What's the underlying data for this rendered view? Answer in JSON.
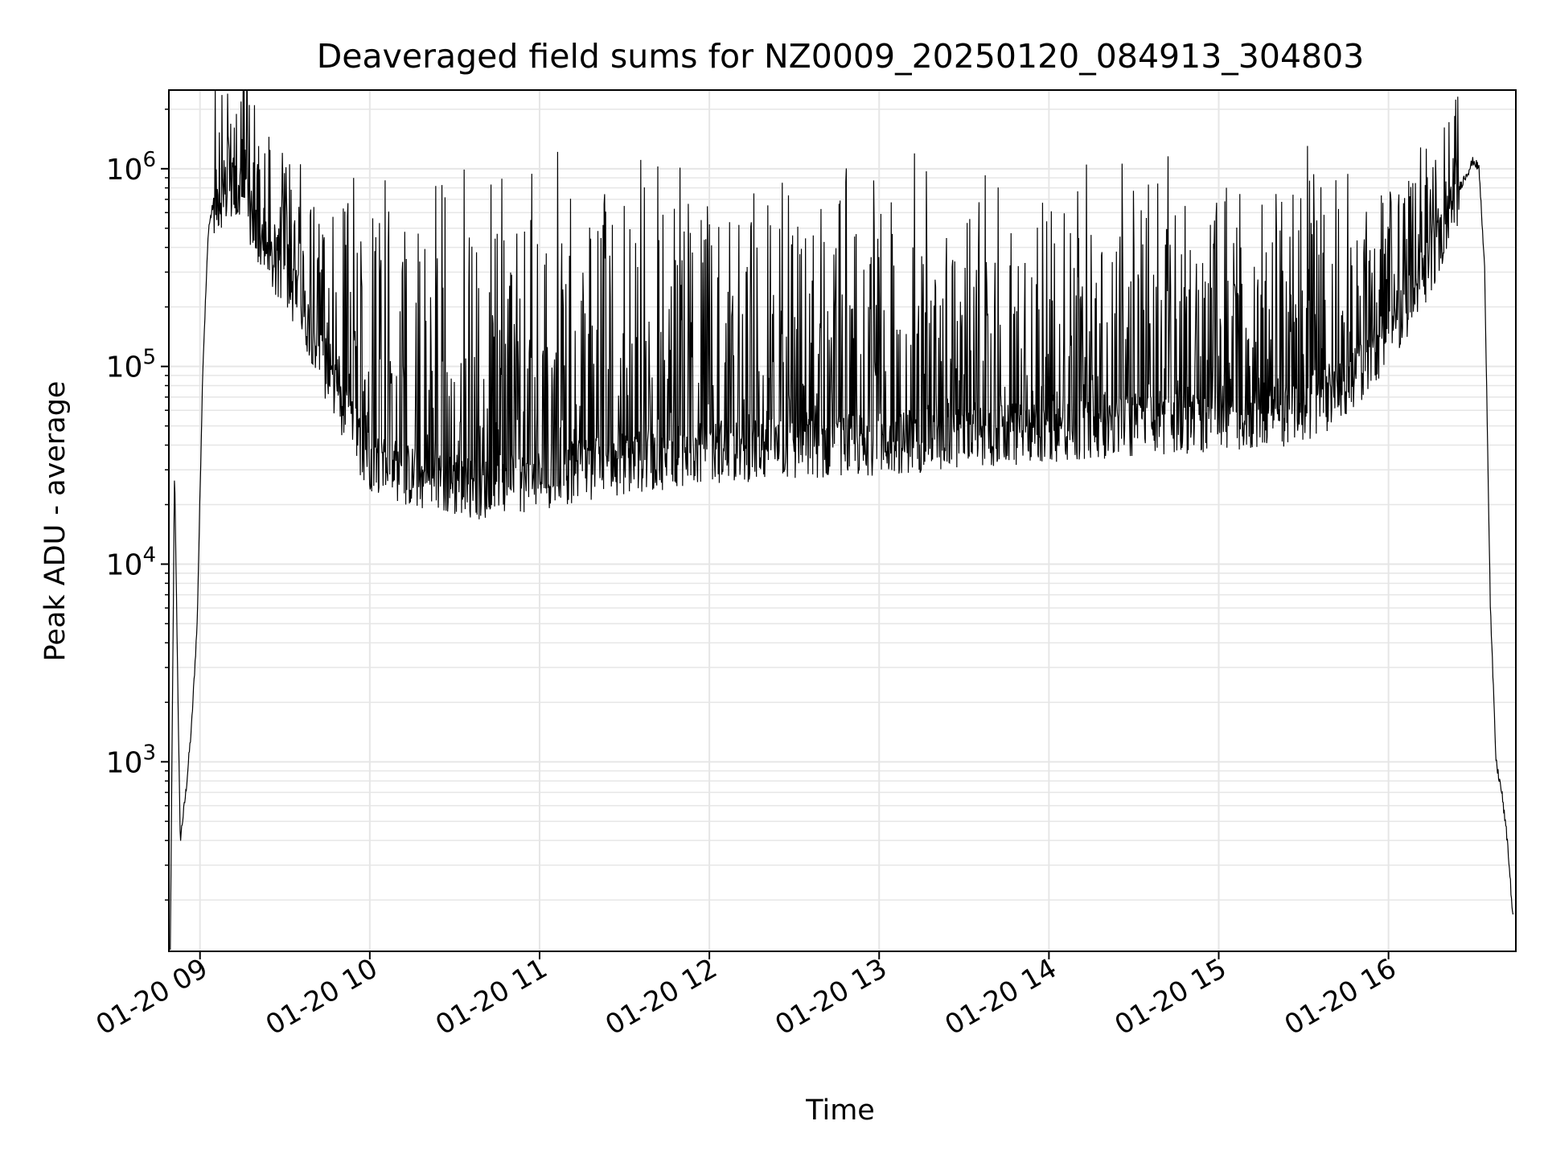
{
  "chart_data": {
    "type": "line",
    "title": "Deaveraged field sums for NZ0009_20250120_084913_304803",
    "xlabel": "Time",
    "ylabel": "Peak ADU - average",
    "x_range": [
      "2025-01-20T08:49:00",
      "2025-01-20T16:45:00"
    ],
    "ylim": [
      110,
      2500000
    ],
    "y_scale": "log",
    "grid": true,
    "x_ticks": [
      {
        "t": "2025-01-20T09:00",
        "label": "01-20 09"
      },
      {
        "t": "2025-01-20T10:00",
        "label": "01-20 10"
      },
      {
        "t": "2025-01-20T11:00",
        "label": "01-20 11"
      },
      {
        "t": "2025-01-20T12:00",
        "label": "01-20 12"
      },
      {
        "t": "2025-01-20T13:00",
        "label": "01-20 13"
      },
      {
        "t": "2025-01-20T14:00",
        "label": "01-20 14"
      },
      {
        "t": "2025-01-20T15:00",
        "label": "01-20 15"
      },
      {
        "t": "2025-01-20T16:00",
        "label": "01-20 16"
      }
    ],
    "y_ticks": [
      {
        "value": 1000,
        "base": "10",
        "exp": "3"
      },
      {
        "value": 10000,
        "base": "10",
        "exp": "4"
      },
      {
        "value": 100000,
        "base": "10",
        "exp": "5"
      },
      {
        "value": 1000000,
        "base": "10",
        "exp": "6"
      }
    ],
    "series": [
      {
        "color": "#000000",
        "envelope": {
          "t": [
            "2025-01-20T08:49:30",
            "2025-01-20T08:51:00",
            "2025-01-20T08:53:00",
            "2025-01-20T08:55:00",
            "2025-01-20T08:57:00",
            "2025-01-20T08:59:00",
            "2025-01-20T09:01:00",
            "2025-01-20T09:03:00",
            "2025-01-20T09:05:00",
            "2025-01-20T09:10:00",
            "2025-01-20T09:15:00",
            "2025-01-20T09:20:00",
            "2025-01-20T09:25:00",
            "2025-01-20T09:30:00",
            "2025-01-20T09:40:00",
            "2025-01-20T09:50:00",
            "2025-01-20T10:00:00",
            "2025-01-20T10:20:00",
            "2025-01-20T10:40:00",
            "2025-01-20T11:00:00",
            "2025-01-20T11:20:00",
            "2025-01-20T11:40:00",
            "2025-01-20T12:00:00",
            "2025-01-20T12:30:00",
            "2025-01-20T13:00:00",
            "2025-01-20T13:30:00",
            "2025-01-20T14:00:00",
            "2025-01-20T14:30:00",
            "2025-01-20T15:00:00",
            "2025-01-20T15:30:00",
            "2025-01-20T15:45:00",
            "2025-01-20T16:00:00",
            "2025-01-20T16:10:00",
            "2025-01-20T16:20:00",
            "2025-01-20T16:25:00",
            "2025-01-20T16:30:00",
            "2025-01-20T16:32:00",
            "2025-01-20T16:34:00",
            "2025-01-20T16:36:00",
            "2025-01-20T16:38:00",
            "2025-01-20T16:40:00",
            "2025-01-20T16:42:00",
            "2025-01-20T16:44:00"
          ],
          "base": [
            110,
            30000,
            400,
            700,
            1500,
            5000,
            100000,
            500000,
            700000,
            800000,
            700000,
            500000,
            350000,
            300000,
            150000,
            60000,
            35000,
            27000,
            25000,
            28000,
            32000,
            35000,
            38000,
            40000,
            42000,
            45000,
            48000,
            52000,
            55000,
            60000,
            80000,
            150000,
            250000,
            500000,
            800000,
            1100000,
            1000000,
            300000,
            6000,
            1000,
            700,
            400,
            160
          ],
          "noisy": [
            0,
            0,
            0,
            0,
            0,
            0,
            0,
            0,
            1,
            1,
            1,
            1,
            1,
            1,
            1,
            1,
            1,
            1,
            1,
            1,
            1,
            1,
            1,
            1,
            1,
            1,
            1,
            1,
            1,
            1,
            1,
            1,
            1,
            1,
            1,
            0,
            0,
            0,
            0,
            0,
            0,
            0,
            0
          ]
        },
        "spike_peak": 1400000
      }
    ]
  }
}
